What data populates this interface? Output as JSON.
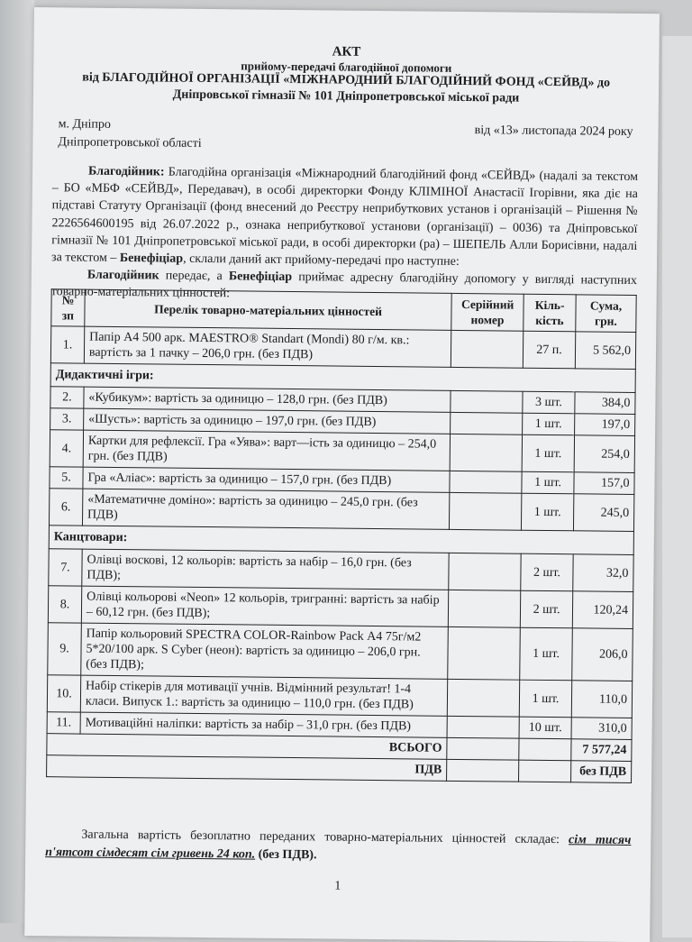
{
  "header": {
    "title": "АКТ",
    "subtitle": "прийому-передачі благодійної допомоги",
    "line3": "від БЛАГОДІЙНОЇ ОРГАНІЗАЦІЇ «МІЖНАРОДНИЙ БЛАГОДІЙНИЙ ФОНД «СЕЙВД» до",
    "line4": "Дніпровської гімназії № 101 Дніпропетровської міської ради",
    "city": "м. Дніпро",
    "region": "Дніпропетровської області",
    "date": "від «13» листопада 2024 року"
  },
  "body": {
    "p1_bold": "Благодійник:",
    "p1": " Благодійна організація «Міжнародний благодійний фонд «СЕЙВД» (надалі за текстом – БО «МБФ «СЕЙВД», Передавач), в особі директорки Фонду КЛІМІНОЇ Анастасії Ігорівни, яка діє на підставі Статуту Організації (фонд внесений до Реєстру неприбуткових установ і організацій – Рішення № 2226564600195 від 26.07.2022 р., ознака неприбуткової установи (організації) – 0036) та Дніпровської гімназії № 101 Дніпропетровської міської ради, в особі директорки (ра) – ШЕПЕЛЬ Алли Борисівни, надалі за текстом – ",
    "p1_bold2": "Бенефіціар",
    "p1_end": ", склали даний акт прийому-передачі про наступне:",
    "p2_bold": "Благодійник",
    "p2_mid": " передає, а ",
    "p2_bold2": "Бенефіціар",
    "p2_end": " приймає адресну благодійну допомогу у вигляді наступних товарно-матеріальних цінностей:"
  },
  "table": {
    "headers": [
      "№ зп",
      "Перелік товарно-матеріальних цінностей",
      "Серійний номер",
      "Кіль-кість",
      "Сума, грн."
    ],
    "rows": [
      {
        "n": "1.",
        "desc": "Папір А4 500 арк. MAESTRO® Standart (Mondi) 80 г/м. кв.: вартість за 1 пачку – 206,0 грн. (без ПДВ)",
        "serial": "",
        "qty": "27 п.",
        "sum": "5 562,0"
      },
      {
        "section": "Дидактичні ігри:"
      },
      {
        "n": "2.",
        "desc": "«Кубикум»: вартість за одиницю – 128,0 грн. (без ПДВ)",
        "serial": "",
        "qty": "3 шт.",
        "sum": "384,0"
      },
      {
        "n": "3.",
        "desc": "«Шусть»: вартість за одиницю – 197,0 грн. (без ПДВ)",
        "serial": "",
        "qty": "1 шт.",
        "sum": "197,0"
      },
      {
        "n": "4.",
        "desc": "Картки для рефлексії. Гра «Уява»: варт—ість за одиницю – 254,0 грн. (без ПДВ)",
        "serial": "",
        "qty": "1 шт.",
        "sum": "254,0"
      },
      {
        "n": "5.",
        "desc": "Гра «Аліас»: вартість за одиницю – 157,0 грн. (без ПДВ)",
        "serial": "",
        "qty": "1 шт.",
        "sum": "157,0"
      },
      {
        "n": "6.",
        "desc": "«Математичне доміно»: вартість за одиницю – 245,0 грн. (без ПДВ)",
        "serial": "",
        "qty": "1 шт.",
        "sum": "245,0"
      },
      {
        "section": "Канцтовари:"
      },
      {
        "n": "7.",
        "desc": "Олівці воскові, 12 кольорів: вартість за набір – 16,0 грн. (без ПДВ);",
        "serial": "",
        "qty": "2 шт.",
        "sum": "32,0"
      },
      {
        "n": "8.",
        "desc": "Олівці кольорові «Neon» 12 кольорів, тригранні: вартість за набір – 60,12 грн. (без ПДВ);",
        "serial": "",
        "qty": "2 шт.",
        "sum": "120,24"
      },
      {
        "n": "9.",
        "desc": "Папір кольоровий SPECTRA COLOR-Rainbow Pack А4 75г/м2 5*20/100 арк. S Cyber (неон): вартість за одиницю – 206,0 грн. (без ПДВ);",
        "serial": "",
        "qty": "1 шт.",
        "sum": "206,0"
      },
      {
        "n": "10.",
        "desc": "Набір стікерів для мотивації учнів. Відмінний результат! 1-4 класи. Випуск 1.: вартість за одиницю – 110,0 грн. (без ПДВ)",
        "serial": "",
        "qty": "1 шт.",
        "sum": "110,0"
      },
      {
        "n": "11.",
        "desc": "Мотиваційні наліпки: вартість за набір – 31,0 грн. (без ПДВ)",
        "serial": "",
        "qty": "10 шт.",
        "sum": "310,0"
      }
    ],
    "total_label": "ВСЬОГО",
    "total_value": "7 577,24",
    "vat_label": "ПДВ",
    "vat_value": "без ПДВ"
  },
  "footer": {
    "text": "Загальна вартість безоплатно переданих товарно-матеріальних цінностей складає: ",
    "amount_words": "сім тисяч п'ятсот сімдесят сім гривень 24 коп.",
    "suffix": " (без ПДВ).",
    "page_number": "1"
  }
}
